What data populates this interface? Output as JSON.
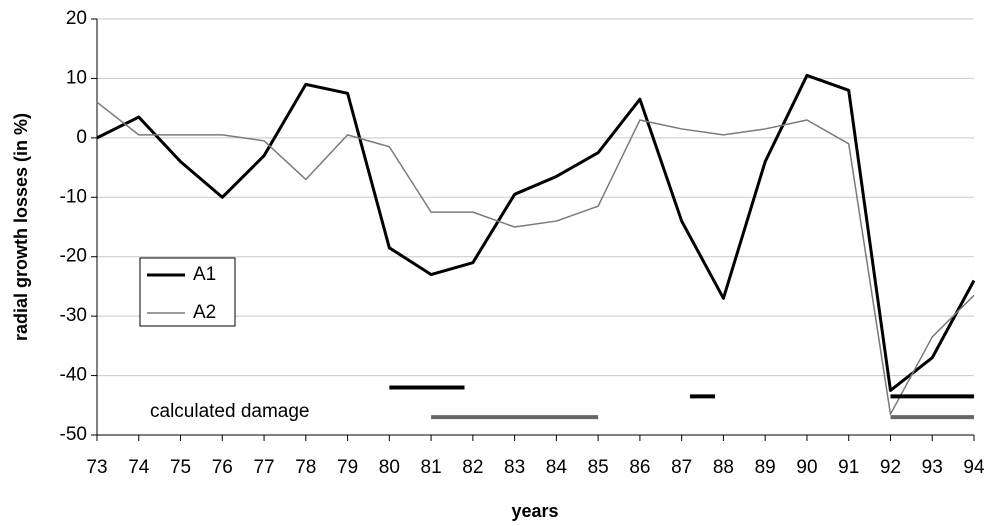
{
  "chart_data": {
    "type": "line",
    "x_label": "years",
    "y_label": "radial growth losses (in %)",
    "x": [
      73,
      74,
      75,
      76,
      77,
      78,
      79,
      80,
      81,
      82,
      83,
      84,
      85,
      86,
      87,
      88,
      89,
      90,
      91,
      92,
      93,
      94
    ],
    "xlim": [
      73,
      94
    ],
    "xticks": [
      73,
      74,
      75,
      76,
      77,
      78,
      79,
      80,
      81,
      82,
      83,
      84,
      85,
      86,
      87,
      88,
      89,
      90,
      91,
      92,
      93,
      94
    ],
    "ylim": [
      -50,
      20
    ],
    "yticks": [
      -50,
      -40,
      -30,
      -20,
      -10,
      0,
      10,
      20
    ],
    "grid": true,
    "legend_position": "center-left",
    "series": [
      {
        "name": "A1",
        "color": "#000000",
        "values": [
          0,
          3.5,
          -4,
          -10,
          -3,
          9,
          7.5,
          -18.5,
          -23,
          -21,
          -9.5,
          -6.5,
          -2.5,
          6.5,
          -14,
          -27,
          -4,
          10.5,
          8,
          -42.5,
          -37,
          -24
        ]
      },
      {
        "name": "A2",
        "color": "#7a7a7a",
        "values": [
          6,
          0.5,
          0.5,
          0.5,
          -0.5,
          -7,
          0.5,
          -1.5,
          -12.5,
          -12.5,
          -15,
          -14,
          -11.5,
          3,
          1.5,
          0.5,
          1.5,
          3,
          -1,
          -46.5,
          -33.5,
          -26.5
        ]
      }
    ],
    "annotation": "calculated damage",
    "damage_bars": [
      {
        "series": 0,
        "color": "#000000",
        "x": [
          80,
          81.8
        ],
        "y": -42
      },
      {
        "series": 0,
        "color": "#000000",
        "x": [
          87.2,
          87.8
        ],
        "y": -43.5
      },
      {
        "series": 0,
        "color": "#000000",
        "x": [
          92,
          94
        ],
        "y": -43.5
      },
      {
        "series": 1,
        "color": "#666666",
        "x": [
          81,
          85
        ],
        "y": -47
      },
      {
        "series": 1,
        "color": "#666666",
        "x": [
          92,
          94
        ],
        "y": -47
      }
    ]
  }
}
